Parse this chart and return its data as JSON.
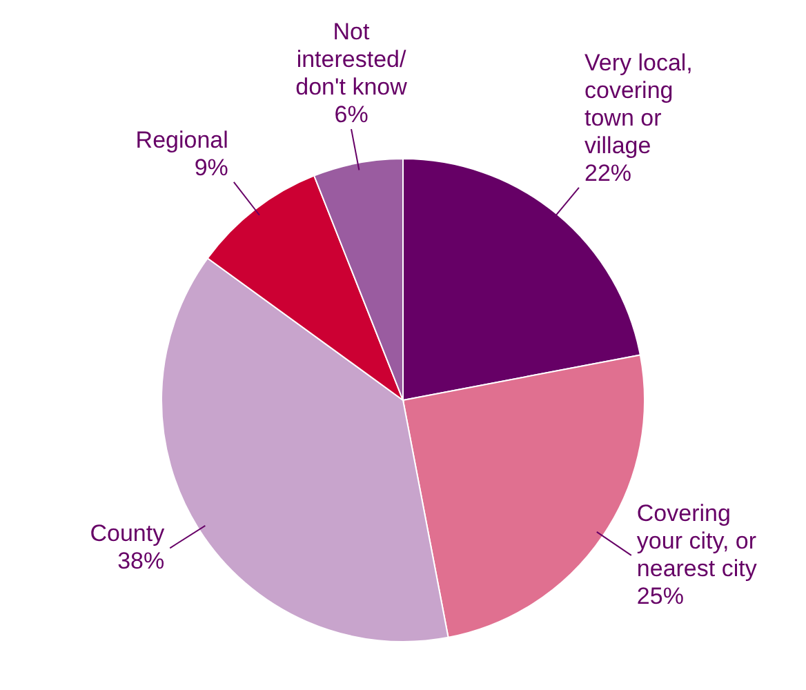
{
  "chart_data": {
    "type": "pie",
    "categories": [
      "Very local,\ncovering\ntown or\nvillage",
      "Covering\nyour city, or\nnearest city",
      "County",
      "Regional",
      "Not\ninterested/\ndon't know"
    ],
    "values": [
      22,
      25,
      38,
      9,
      6
    ],
    "value_labels": [
      "22%",
      "25%",
      "38%",
      "9%",
      "6%"
    ],
    "colors": [
      "#660066",
      "#e07090",
      "#c8a4cc",
      "#cc0033",
      "#9a5ca0"
    ]
  }
}
